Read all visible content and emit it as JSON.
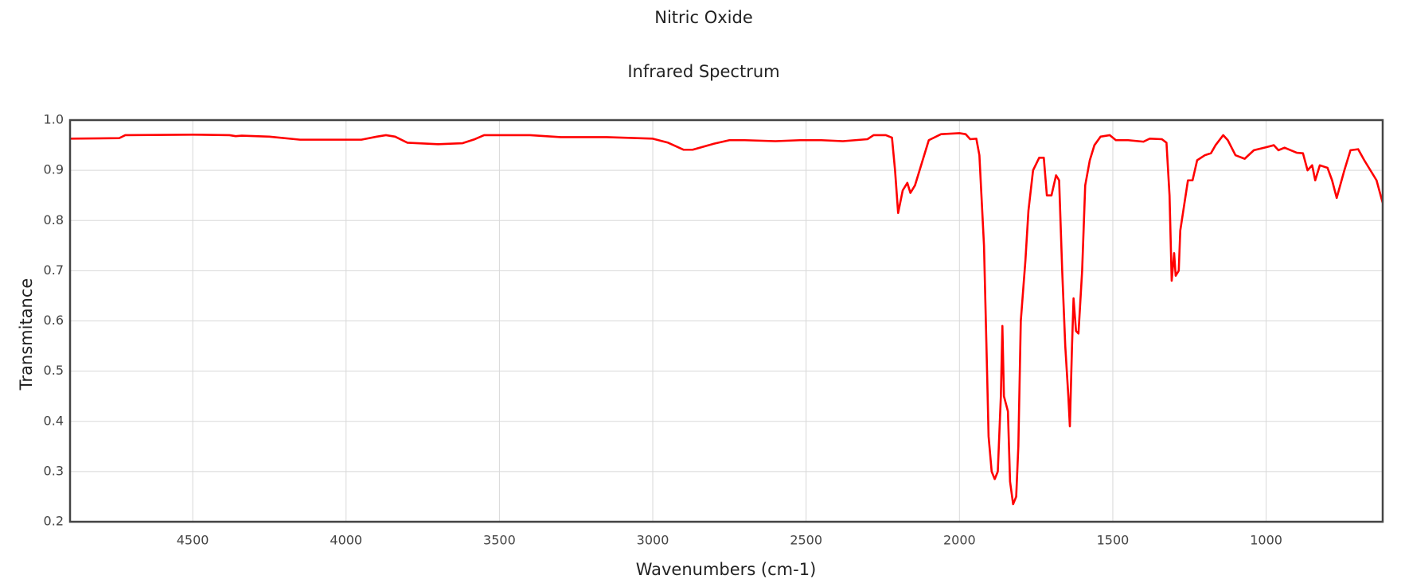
{
  "chart_data": {
    "type": "line",
    "title": "Nitric Oxide",
    "subtitle": "Infrared Spectrum",
    "x_label": "Wavenumbers (cm-1)",
    "y_label": "Transmitance",
    "xlim": [
      4900,
      620
    ],
    "ylim": [
      0.2,
      1.0
    ],
    "xticks": [
      4500,
      4000,
      3500,
      3000,
      2500,
      2000,
      1500,
      1000
    ],
    "yticks": [
      0.2,
      0.3,
      0.4,
      0.5,
      0.6,
      0.7,
      0.8,
      0.9,
      {
        "value": 1,
        "label": "1.0"
      }
    ],
    "grid": true,
    "series": [
      {
        "color": "#ff0000",
        "x": [
          4900,
          4740,
          4720,
          4500,
          4380,
          4360,
          4340,
          4250,
          4150,
          3950,
          3900,
          3870,
          3840,
          3800,
          3700,
          3620,
          3580,
          3550,
          3400,
          3300,
          3150,
          3000,
          2950,
          2900,
          2870,
          2800,
          2750,
          2700,
          2600,
          2520,
          2450,
          2380,
          2300,
          2280,
          2240,
          2220,
          2210,
          2200,
          2185,
          2170,
          2160,
          2145,
          2120,
          2100,
          2060,
          2000,
          1980,
          1965,
          1945,
          1935,
          1920,
          1910,
          1905,
          1895,
          1885,
          1875,
          1865,
          1860,
          1855,
          1842,
          1835,
          1825,
          1815,
          1808,
          1800,
          1785,
          1775,
          1760,
          1740,
          1725,
          1715,
          1700,
          1685,
          1675,
          1665,
          1655,
          1645,
          1640,
          1633,
          1628,
          1620,
          1612,
          1600,
          1590,
          1575,
          1560,
          1540,
          1510,
          1490,
          1450,
          1400,
          1380,
          1340,
          1325,
          1315,
          1308,
          1300,
          1295,
          1285,
          1280,
          1265,
          1255,
          1240,
          1225,
          1200,
          1180,
          1165,
          1140,
          1125,
          1100,
          1070,
          1040,
          1000,
          975,
          960,
          940,
          900,
          880,
          865,
          850,
          840,
          825,
          800,
          785,
          770,
          745,
          725,
          700,
          680,
          660,
          640,
          620
        ],
        "values": [
          0.963,
          0.964,
          0.97,
          0.971,
          0.97,
          0.968,
          0.969,
          0.967,
          0.961,
          0.961,
          0.967,
          0.97,
          0.967,
          0.955,
          0.952,
          0.954,
          0.962,
          0.97,
          0.97,
          0.966,
          0.966,
          0.963,
          0.955,
          0.941,
          0.941,
          0.953,
          0.96,
          0.96,
          0.958,
          0.96,
          0.96,
          0.958,
          0.962,
          0.97,
          0.97,
          0.965,
          0.9,
          0.815,
          0.86,
          0.875,
          0.855,
          0.87,
          0.92,
          0.96,
          0.972,
          0.974,
          0.972,
          0.962,
          0.963,
          0.93,
          0.75,
          0.5,
          0.37,
          0.3,
          0.285,
          0.3,
          0.45,
          0.59,
          0.45,
          0.42,
          0.28,
          0.235,
          0.25,
          0.35,
          0.6,
          0.72,
          0.82,
          0.9,
          0.925,
          0.925,
          0.85,
          0.85,
          0.89,
          0.88,
          0.7,
          0.55,
          0.45,
          0.39,
          0.55,
          0.645,
          0.58,
          0.575,
          0.7,
          0.87,
          0.92,
          0.95,
          0.967,
          0.97,
          0.96,
          0.96,
          0.957,
          0.963,
          0.962,
          0.955,
          0.85,
          0.68,
          0.735,
          0.69,
          0.7,
          0.78,
          0.84,
          0.88,
          0.88,
          0.92,
          0.93,
          0.934,
          0.95,
          0.97,
          0.96,
          0.93,
          0.923,
          0.94,
          0.946,
          0.95,
          0.94,
          0.945,
          0.935,
          0.934,
          0.9,
          0.91,
          0.88,
          0.91,
          0.905,
          0.88,
          0.845,
          0.9,
          0.94,
          0.942,
          0.92,
          0.9,
          0.88,
          0.835
        ]
      }
    ]
  }
}
